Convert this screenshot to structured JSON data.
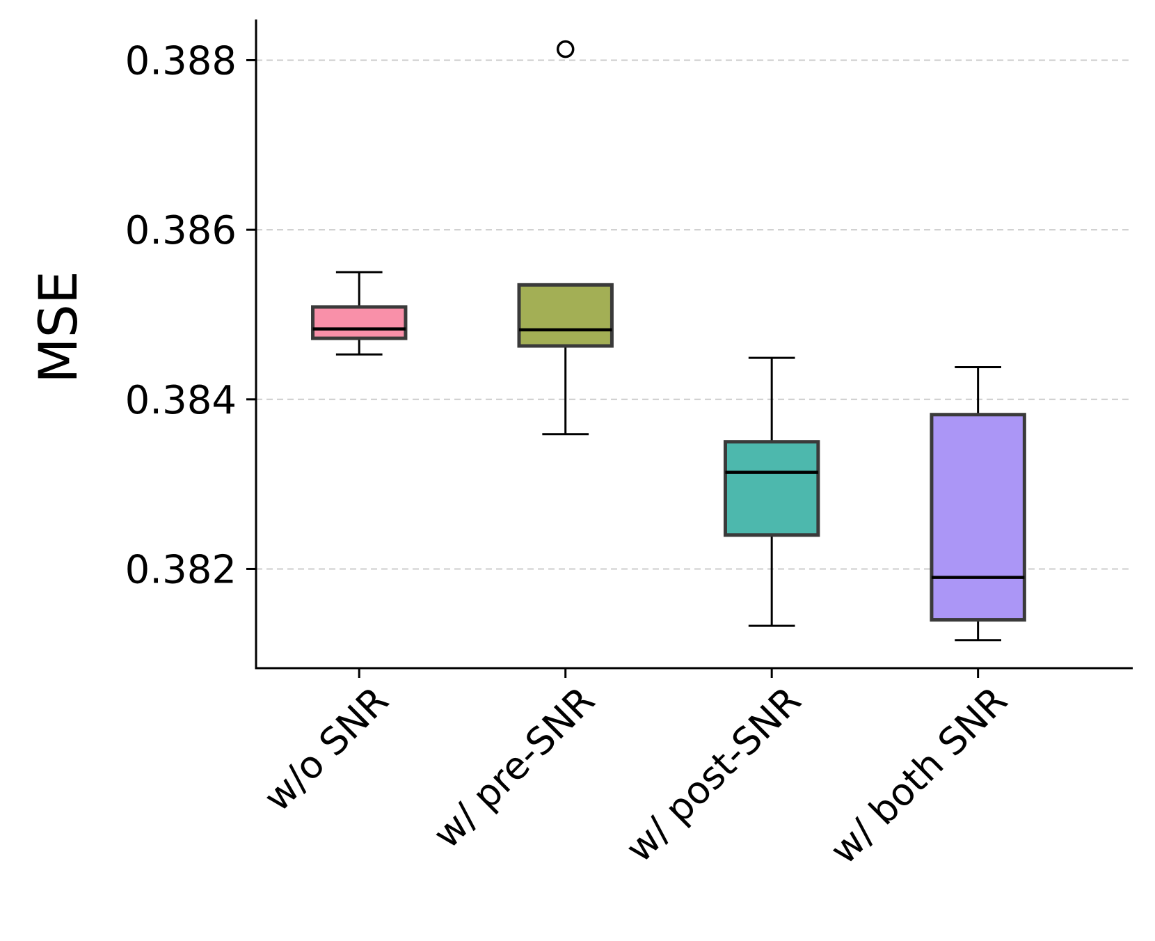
{
  "chart_data": {
    "type": "box",
    "title": "",
    "xlabel": "",
    "ylabel": "MSE",
    "ylim": [
      0.38083,
      0.38848
    ],
    "yticks": [
      0.382,
      0.384,
      0.386,
      0.388
    ],
    "ytick_labels": [
      "0.382",
      "0.384",
      "0.386",
      "0.388"
    ],
    "grid": "y-dashed",
    "categories": [
      "w/o SNR",
      "w/ pre-SNR",
      "w/ post-SNR",
      "w/ both SNR"
    ],
    "boxes": [
      {
        "name": "w/o SNR",
        "whisker_low": 0.38453,
        "q1": 0.38472,
        "median": 0.38483,
        "q3": 0.38509,
        "whisker_high": 0.3855,
        "outliers": [],
        "color": "#f990a9"
      },
      {
        "name": "w/ pre-SNR",
        "whisker_low": 0.38359,
        "q1": 0.38463,
        "median": 0.38482,
        "q3": 0.38535,
        "whisker_high": 0.38535,
        "outliers": [
          0.38813
        ],
        "color": "#a3af55"
      },
      {
        "name": "w/ post-SNR",
        "whisker_low": 0.38133,
        "q1": 0.3824,
        "median": 0.38314,
        "q3": 0.3835,
        "whisker_high": 0.38449,
        "outliers": [],
        "color": "#4db8ad"
      },
      {
        "name": "w/ both SNR",
        "whisker_low": 0.38116,
        "q1": 0.3814,
        "median": 0.3819,
        "q3": 0.38382,
        "whisker_high": 0.38438,
        "outliers": [],
        "color": "#ab96f6"
      }
    ]
  }
}
